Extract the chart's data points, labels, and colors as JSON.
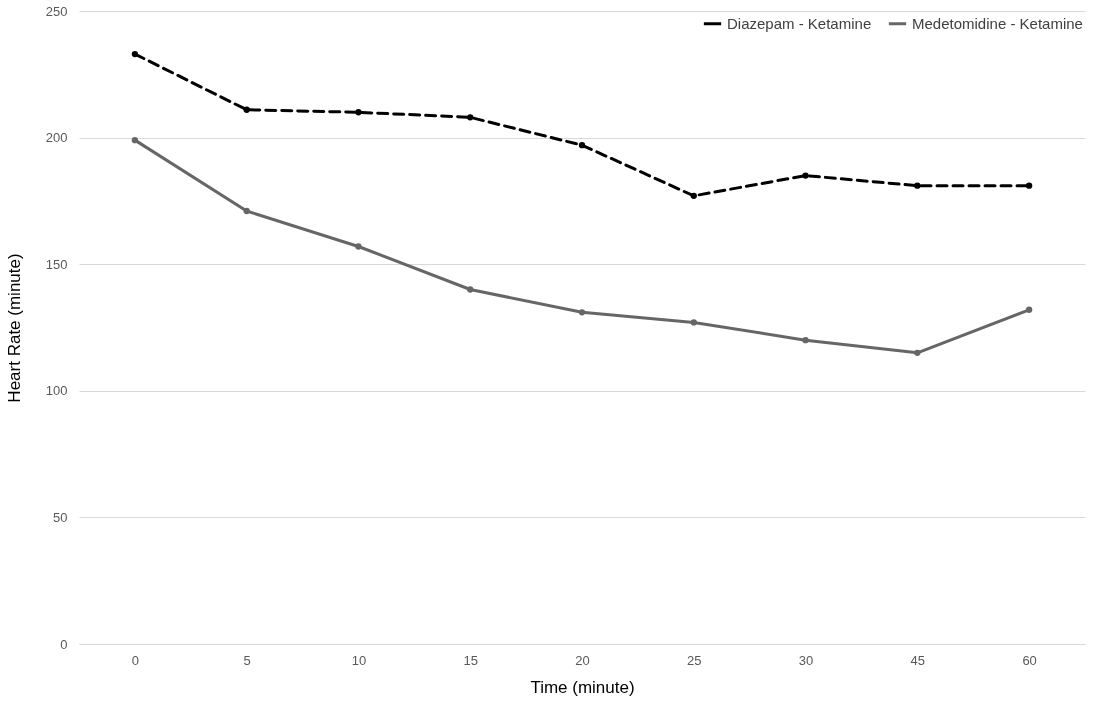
{
  "chart_data": {
    "type": "line",
    "xlabel": "Time (minute)",
    "ylabel": "Heart  Rate (minute)",
    "categories": [
      "0",
      "5",
      "10",
      "15",
      "20",
      "25",
      "30",
      "45",
      "60"
    ],
    "series": [
      {
        "name": "Diazepam - Ketamine",
        "color": "#000000",
        "line_style": "dashed",
        "values": [
          233,
          211,
          210,
          208,
          197,
          177,
          185,
          181,
          181
        ]
      },
      {
        "name": "Medetomidine - Ketamine",
        "color": "#666666",
        "line_style": "solid",
        "values": [
          199,
          171,
          157,
          140,
          131,
          127,
          120,
          115,
          132
        ]
      }
    ],
    "ylim": [
      0,
      250
    ],
    "yticks": [
      0,
      50,
      100,
      150,
      200,
      250
    ],
    "grid": "y",
    "legend": "top right",
    "marker": "circle"
  }
}
